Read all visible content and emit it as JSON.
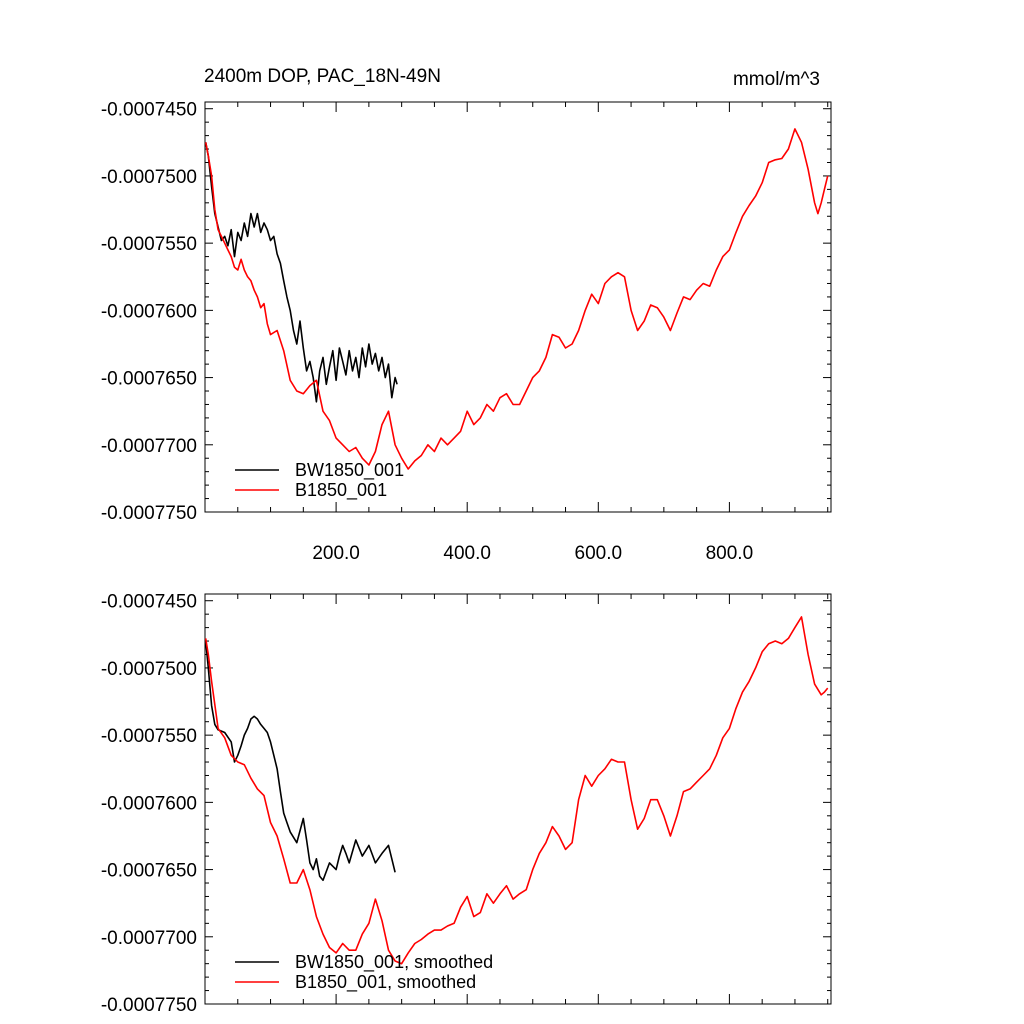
{
  "chart_data": [
    {
      "type": "line",
      "title_left": "2400m DOP, PAC_18N-49N",
      "title_right": "mmol/m^3",
      "xlim": [
        0,
        955
      ],
      "ylim": [
        -0.000775,
        -0.0007445
      ],
      "yticks": [
        -0.000745,
        -0.00075,
        -0.000755,
        -0.00076,
        -0.000765,
        -0.00077,
        -0.000775
      ],
      "ytick_labels": [
        "-0.0007450",
        "-0.0007500",
        "-0.0007550",
        "-0.0007600",
        "-0.0007650",
        "-0.0007700",
        "-0.0007750"
      ],
      "xticks": [
        200,
        400,
        600,
        800
      ],
      "xtick_labels": [
        "200.0",
        "400.0",
        "600.0",
        "800.0"
      ],
      "legend_position": "bottom-left",
      "series": [
        {
          "name": "BW1850_001",
          "color": "#000000",
          "x": [
            1,
            5,
            10,
            15,
            20,
            25,
            30,
            35,
            40,
            45,
            50,
            55,
            60,
            65,
            70,
            75,
            80,
            85,
            90,
            95,
            100,
            105,
            110,
            115,
            120,
            125,
            130,
            135,
            140,
            145,
            150,
            155,
            160,
            165,
            170,
            175,
            180,
            185,
            190,
            195,
            200,
            205,
            210,
            215,
            220,
            225,
            230,
            235,
            240,
            245,
            250,
            255,
            260,
            265,
            270,
            275,
            280,
            285,
            290,
            293
          ],
          "y": [
            -0.0007475,
            -0.0007485,
            -0.0007508,
            -0.0007528,
            -0.0007538,
            -0.0007548,
            -0.0007545,
            -0.0007552,
            -0.000754,
            -0.000756,
            -0.0007542,
            -0.0007548,
            -0.0007535,
            -0.0007545,
            -0.0007528,
            -0.0007538,
            -0.0007528,
            -0.0007542,
            -0.0007535,
            -0.000754,
            -0.0007548,
            -0.0007545,
            -0.0007558,
            -0.0007565,
            -0.0007578,
            -0.000759,
            -0.00076,
            -0.0007615,
            -0.0007625,
            -0.0007608,
            -0.0007628,
            -0.0007645,
            -0.0007638,
            -0.000765,
            -0.0007668,
            -0.0007645,
            -0.0007635,
            -0.0007655,
            -0.0007642,
            -0.000763,
            -0.0007652,
            -0.0007628,
            -0.0007638,
            -0.0007648,
            -0.000763,
            -0.0007645,
            -0.0007635,
            -0.000765,
            -0.0007628,
            -0.0007642,
            -0.0007625,
            -0.000764,
            -0.0007632,
            -0.0007645,
            -0.0007635,
            -0.000765,
            -0.000764,
            -0.0007665,
            -0.000765,
            -0.0007655
          ]
        },
        {
          "name": "B1850_001",
          "color": "#ff0000",
          "x": [
            1,
            5,
            10,
            15,
            20,
            25,
            30,
            35,
            40,
            45,
            50,
            55,
            60,
            65,
            70,
            75,
            80,
            85,
            90,
            95,
            100,
            110,
            120,
            130,
            140,
            150,
            160,
            170,
            180,
            190,
            200,
            210,
            220,
            230,
            240,
            250,
            260,
            270,
            280,
            290,
            300,
            310,
            320,
            330,
            340,
            350,
            360,
            370,
            380,
            390,
            400,
            410,
            420,
            430,
            440,
            450,
            460,
            470,
            480,
            490,
            500,
            510,
            520,
            530,
            540,
            550,
            560,
            570,
            580,
            590,
            600,
            610,
            620,
            630,
            640,
            650,
            660,
            670,
            680,
            690,
            700,
            710,
            720,
            730,
            740,
            750,
            760,
            770,
            780,
            790,
            800,
            810,
            820,
            830,
            840,
            850,
            860,
            870,
            880,
            890,
            900,
            910,
            920,
            930,
            935,
            940,
            945,
            950
          ],
          "y": [
            -0.0007475,
            -0.0007485,
            -0.00075,
            -0.0007525,
            -0.000754,
            -0.0007545,
            -0.000755,
            -0.0007555,
            -0.000756,
            -0.0007568,
            -0.000757,
            -0.0007562,
            -0.000757,
            -0.0007575,
            -0.0007578,
            -0.0007585,
            -0.000759,
            -0.0007598,
            -0.0007595,
            -0.000761,
            -0.0007618,
            -0.0007615,
            -0.000763,
            -0.0007652,
            -0.000766,
            -0.0007662,
            -0.0007656,
            -0.0007652,
            -0.0007675,
            -0.0007682,
            -0.0007695,
            -0.00077,
            -0.0007705,
            -0.0007702,
            -0.000771,
            -0.0007715,
            -0.0007705,
            -0.0007685,
            -0.0007675,
            -0.00077,
            -0.000771,
            -0.0007718,
            -0.0007712,
            -0.0007708,
            -0.00077,
            -0.0007705,
            -0.0007695,
            -0.00077,
            -0.0007695,
            -0.000769,
            -0.0007675,
            -0.0007685,
            -0.000768,
            -0.000767,
            -0.0007675,
            -0.0007665,
            -0.0007662,
            -0.000767,
            -0.000767,
            -0.000766,
            -0.000765,
            -0.0007645,
            -0.0007635,
            -0.0007618,
            -0.000762,
            -0.0007628,
            -0.0007625,
            -0.0007615,
            -0.00076,
            -0.0007588,
            -0.0007595,
            -0.000758,
            -0.0007575,
            -0.0007572,
            -0.0007575,
            -0.00076,
            -0.0007615,
            -0.0007608,
            -0.0007596,
            -0.0007598,
            -0.0007605,
            -0.0007615,
            -0.0007602,
            -0.000759,
            -0.0007592,
            -0.0007585,
            -0.000758,
            -0.0007582,
            -0.000757,
            -0.000756,
            -0.0007555,
            -0.0007542,
            -0.000753,
            -0.0007522,
            -0.0007515,
            -0.0007505,
            -0.000749,
            -0.0007488,
            -0.0007487,
            -0.000748,
            -0.0007465,
            -0.0007475,
            -0.0007495,
            -0.000752,
            -0.0007528,
            -0.000752,
            -0.000751,
            -0.00075
          ]
        }
      ]
    },
    {
      "type": "line",
      "xlim": [
        0,
        955
      ],
      "ylim": [
        -0.000775,
        -0.0007445
      ],
      "yticks": [
        -0.000745,
        -0.00075,
        -0.000755,
        -0.00076,
        -0.000765,
        -0.00077,
        -0.000775
      ],
      "ytick_labels": [
        "-0.0007450",
        "-0.0007500",
        "-0.0007550",
        "-0.0007600",
        "-0.0007650",
        "-0.0007700",
        "-0.0007750"
      ],
      "legend_position": "bottom-left",
      "series": [
        {
          "name": "BW1850_001, smoothed",
          "color": "#000000",
          "x": [
            1,
            5,
            10,
            15,
            20,
            30,
            40,
            45,
            50,
            55,
            60,
            65,
            70,
            75,
            80,
            85,
            90,
            95,
            100,
            105,
            110,
            115,
            120,
            125,
            130,
            140,
            150,
            155,
            160,
            165,
            170,
            175,
            180,
            190,
            200,
            205,
            210,
            215,
            220,
            230,
            240,
            250,
            260,
            270,
            280,
            285,
            290
          ],
          "y": [
            -0.000748,
            -0.00075,
            -0.0007528,
            -0.0007542,
            -0.0007546,
            -0.0007548,
            -0.0007555,
            -0.000757,
            -0.0007565,
            -0.0007558,
            -0.000755,
            -0.0007545,
            -0.0007538,
            -0.0007536,
            -0.0007538,
            -0.0007542,
            -0.0007545,
            -0.0007548,
            -0.0007555,
            -0.0007565,
            -0.0007575,
            -0.0007592,
            -0.0007608,
            -0.0007615,
            -0.0007622,
            -0.000763,
            -0.0007612,
            -0.0007628,
            -0.0007645,
            -0.000765,
            -0.0007642,
            -0.0007655,
            -0.0007658,
            -0.0007645,
            -0.000765,
            -0.000764,
            -0.0007632,
            -0.0007638,
            -0.0007645,
            -0.0007628,
            -0.000764,
            -0.0007632,
            -0.0007645,
            -0.0007638,
            -0.0007632,
            -0.0007642,
            -0.0007652
          ]
        },
        {
          "name": "B1850_001, smoothed",
          "color": "#ff0000",
          "x": [
            1,
            5,
            10,
            20,
            30,
            40,
            50,
            60,
            70,
            80,
            90,
            100,
            110,
            120,
            130,
            140,
            150,
            160,
            170,
            180,
            190,
            200,
            210,
            220,
            230,
            240,
            250,
            260,
            270,
            280,
            290,
            300,
            310,
            320,
            330,
            340,
            350,
            360,
            370,
            380,
            390,
            400,
            410,
            420,
            430,
            440,
            450,
            460,
            470,
            480,
            490,
            500,
            510,
            520,
            530,
            540,
            550,
            560,
            570,
            580,
            590,
            600,
            610,
            620,
            630,
            640,
            650,
            660,
            670,
            680,
            690,
            700,
            710,
            720,
            730,
            740,
            750,
            760,
            770,
            780,
            790,
            800,
            810,
            820,
            830,
            840,
            850,
            860,
            870,
            880,
            890,
            900,
            910,
            920,
            930,
            940,
            945,
            950
          ],
          "y": [
            -0.0007478,
            -0.000749,
            -0.000751,
            -0.0007545,
            -0.0007552,
            -0.0007565,
            -0.000757,
            -0.0007572,
            -0.0007582,
            -0.000759,
            -0.0007595,
            -0.0007615,
            -0.0007625,
            -0.0007642,
            -0.000766,
            -0.000766,
            -0.000765,
            -0.0007665,
            -0.0007685,
            -0.0007698,
            -0.0007708,
            -0.0007712,
            -0.0007705,
            -0.000771,
            -0.000771,
            -0.0007698,
            -0.000769,
            -0.0007672,
            -0.0007688,
            -0.000771,
            -0.0007718,
            -0.000772,
            -0.0007712,
            -0.0007705,
            -0.0007702,
            -0.0007698,
            -0.0007695,
            -0.0007695,
            -0.0007692,
            -0.000769,
            -0.0007678,
            -0.000767,
            -0.0007685,
            -0.0007682,
            -0.0007668,
            -0.0007675,
            -0.0007668,
            -0.0007662,
            -0.0007672,
            -0.0007668,
            -0.0007665,
            -0.000765,
            -0.0007638,
            -0.000763,
            -0.0007618,
            -0.0007625,
            -0.0007635,
            -0.000763,
            -0.0007598,
            -0.000758,
            -0.0007588,
            -0.000758,
            -0.0007575,
            -0.0007568,
            -0.000757,
            -0.000757,
            -0.0007598,
            -0.000762,
            -0.0007612,
            -0.0007598,
            -0.0007598,
            -0.000761,
            -0.0007625,
            -0.000761,
            -0.0007592,
            -0.000759,
            -0.0007585,
            -0.000758,
            -0.0007575,
            -0.0007565,
            -0.0007552,
            -0.0007545,
            -0.000753,
            -0.0007518,
            -0.000751,
            -0.00075,
            -0.0007488,
            -0.0007482,
            -0.000748,
            -0.0007482,
            -0.0007478,
            -0.000747,
            -0.0007462,
            -0.000749,
            -0.0007512,
            -0.000752,
            -0.0007518,
            -0.0007515
          ]
        }
      ]
    }
  ]
}
